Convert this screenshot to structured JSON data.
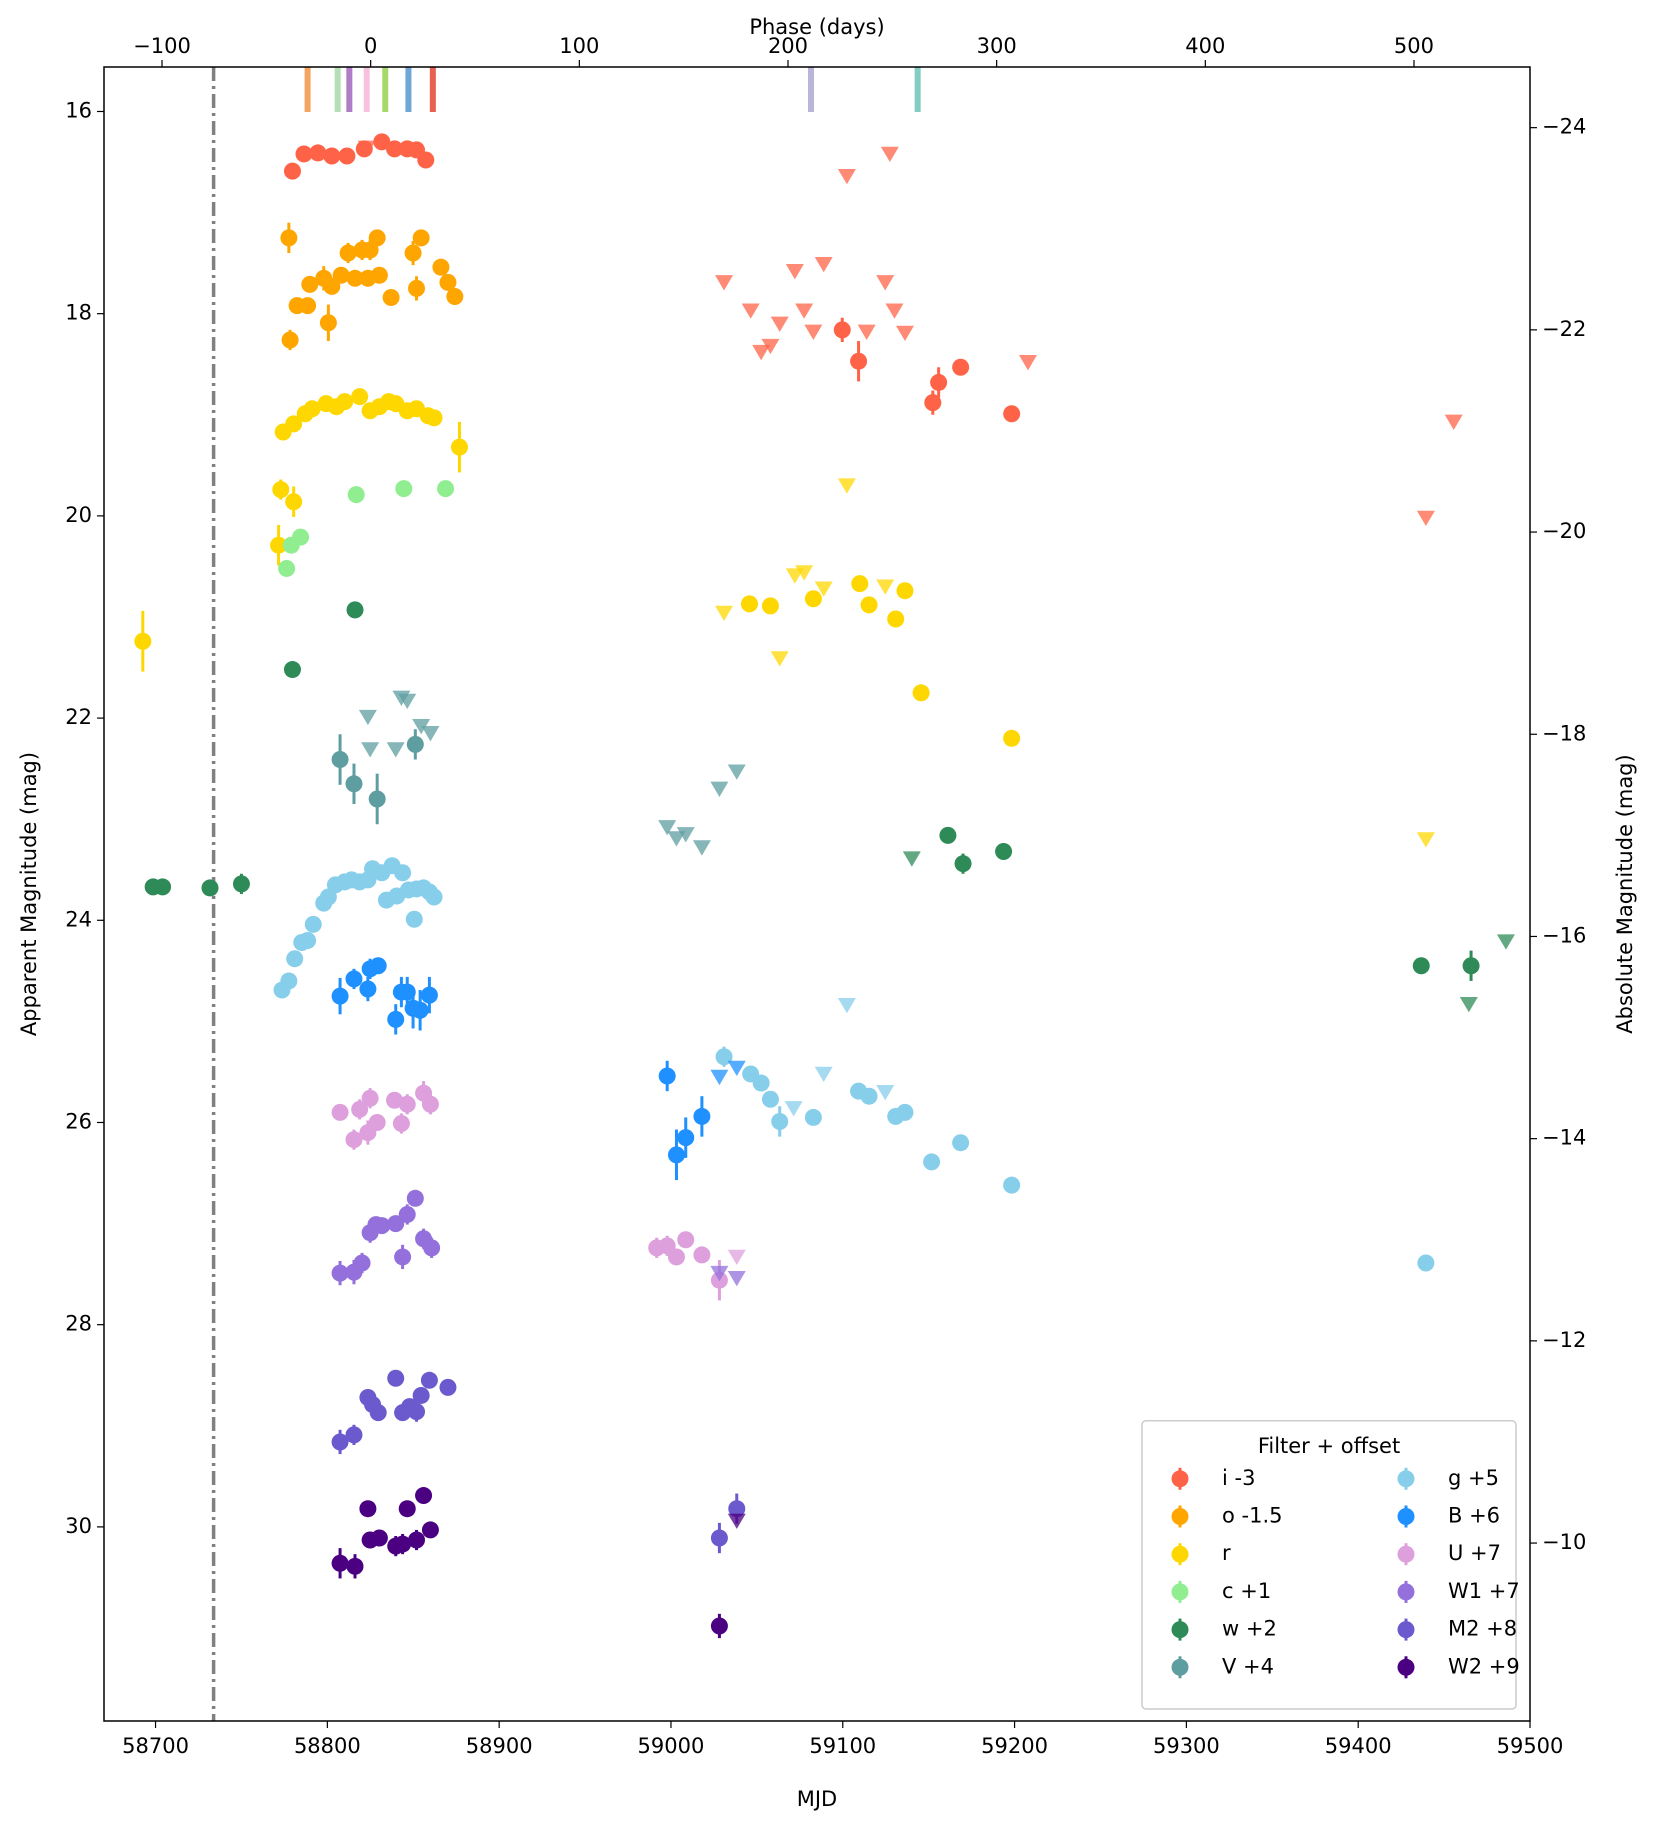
{
  "chart_data": {
    "type": "scatter",
    "xlabel": "MJD",
    "ylabel": "Apparent Magnitude (mag)",
    "x2label": "Phase (days)",
    "y2label": "Absolute Magnitude (mag)",
    "xlim": [
      58670,
      59500
    ],
    "xticks": [
      58700,
      58800,
      58900,
      59000,
      59100,
      59200,
      59300,
      59400,
      59500
    ],
    "ylim": [
      31.92,
      15.56
    ],
    "yticks": [
      16,
      18,
      20,
      22,
      24,
      26,
      28,
      30
    ],
    "x2lim": [
      -127.8,
      555.6
    ],
    "x2ticks": [
      {
        "value": -100,
        "label": "−100"
      },
      0,
      100,
      200,
      300,
      400,
      500
    ],
    "y2lim": [
      -8.24,
      -24.6
    ],
    "y2ticks": [
      {
        "value": -24,
        "label": "−24"
      },
      {
        "value": -22,
        "label": "−22"
      },
      {
        "value": -20,
        "label": "−20"
      },
      {
        "value": -18,
        "label": "−18"
      },
      {
        "value": -16,
        "label": "−16"
      },
      {
        "value": -14,
        "label": "−14"
      },
      {
        "value": -12,
        "label": "−12"
      },
      {
        "value": -10,
        "label": "−10"
      }
    ],
    "vline_x": 58733.8,
    "vline_color": "#808080",
    "epoch_markers": {
      "x": [
        58788.5,
        58806.0,
        58812.8,
        58822.9,
        58833.7,
        58847.2,
        58861.4,
        59081.5,
        59143.6
      ],
      "colors": [
        "#f4a460",
        "#b5e0b5",
        "#b07cc6",
        "#f7c0dc",
        "#a6d96a",
        "#6ea8d6",
        "#e8604f",
        "#b8b4dc",
        "#80cdc1"
      ]
    },
    "legend": {
      "title": "Filter + offset",
      "position": "lower right",
      "columns": 2
    },
    "series": [
      {
        "name": "i -3",
        "color": "#ff6347",
        "x": [
          58779.7,
          58786.4,
          58794.5,
          58802.6,
          58811.4,
          58821.5,
          58831.7,
          58839.1,
          58846.5,
          58851.9,
          58857.3,
          59099.7,
          59109.2,
          59152.4,
          59155.8,
          59168.6,
          59198.3
        ],
        "values": [
          16.59,
          16.42,
          16.41,
          16.44,
          16.44,
          16.37,
          16.3,
          16.37,
          16.37,
          16.38,
          16.48,
          18.16,
          18.47,
          18.88,
          18.68,
          18.53,
          18.99
        ],
        "errors": [
          0.05,
          0.05,
          0.04,
          0.04,
          0.04,
          0.04,
          0.05,
          0.04,
          0.04,
          0.04,
          0.05,
          0.12,
          0.2,
          0.12,
          0.15,
          0.08,
          0.08
        ],
        "upper_limits": {
          "x": [
            58822.9,
            59030.9,
            59046.4,
            59052.5,
            59057.9,
            59063.3,
            59072.1,
            59077.5,
            59082.9,
            59088.9,
            59102.4,
            59113.9,
            59124.7,
            59127.4,
            59130.1,
            59136.2,
            59207.8,
            59439.4,
            59455.6
          ],
          "values": [
            16.36,
            17.69,
            17.97,
            18.38,
            18.32,
            18.1,
            17.58,
            17.97,
            18.18,
            17.51,
            16.64,
            18.18,
            17.69,
            16.42,
            17.97,
            18.19,
            18.48,
            20.02,
            19.07
          ]
        }
      },
      {
        "name": "o -1.5",
        "color": "#ffa500",
        "x": [
          58778.3,
          58782.4,
          58788.5,
          58789.8,
          58777.6,
          58800.6,
          58797.9,
          58802.6,
          58808.0,
          58812.1,
          58816.1,
          58820.2,
          58823.6,
          58824.9,
          58829.0,
          58830.3,
          58837.1,
          58849.9,
          58851.9,
          58854.6,
          58866.1,
          58870.2,
          58874.2
        ],
        "values": [
          18.26,
          17.92,
          17.92,
          17.71,
          17.25,
          18.09,
          17.65,
          17.73,
          17.62,
          17.4,
          17.65,
          17.37,
          17.65,
          17.37,
          17.25,
          17.62,
          17.84,
          17.4,
          17.75,
          17.25,
          17.54,
          17.69,
          17.83
        ],
        "errors": [
          0.1,
          0.06,
          0.06,
          0.06,
          0.15,
          0.18,
          0.12,
          0.08,
          0.08,
          0.1,
          0.08,
          0.1,
          0.08,
          0.1,
          0.06,
          0.08,
          0.06,
          0.12,
          0.12,
          0.08,
          0.06,
          0.06,
          0.08
        ]
      },
      {
        "name": "r",
        "color": "#ffd700",
        "x": [
          58692.6,
          58771.6,
          58772.9,
          58780.4,
          58774.3,
          58780.4,
          58787.1,
          58791.2,
          58799.3,
          58805.3,
          58810.1,
          58818.8,
          58824.9,
          58830.3,
          58835.7,
          58839.8,
          58846.5,
          58851.9,
          58858.7,
          58862.1,
          58876.9,
          59045.7,
          59057.9,
          59082.9,
          59109.9,
          59115.3,
          59130.8,
          59136.2,
          59145.6,
          59198.3
        ],
        "values": [
          21.24,
          20.29,
          19.74,
          19.86,
          19.17,
          19.09,
          18.99,
          18.94,
          18.89,
          18.92,
          18.87,
          18.82,
          18.96,
          18.92,
          18.87,
          18.89,
          18.96,
          18.94,
          19.01,
          19.03,
          19.32,
          20.87,
          20.89,
          20.82,
          20.67,
          20.88,
          21.02,
          20.74,
          21.75,
          22.2
        ],
        "errors": [
          0.3,
          0.2,
          0.1,
          0.15,
          0.06,
          0.06,
          0.06,
          0.05,
          0.05,
          0.06,
          0.05,
          0.05,
          0.05,
          0.05,
          0.05,
          0.05,
          0.05,
          0.05,
          0.05,
          0.05,
          0.25,
          0.08,
          0.05,
          0.08,
          0.05,
          0.08,
          0.05,
          0.08,
          0.06,
          0.08
        ],
        "upper_limits": {
          "x": [
            59030.9,
            59063.3,
            59072.1,
            59077.5,
            59088.9,
            59102.4,
            59124.7,
            59439.4
          ],
          "values": [
            20.96,
            21.41,
            20.59,
            20.56,
            20.72,
            19.7,
            20.7,
            23.2
          ]
        }
      },
      {
        "name": "c +1",
        "color": "#90ee90",
        "x": [
          58776.3,
          58779.0,
          58784.4,
          58816.8,
          58844.5,
          58868.8
        ],
        "values": [
          20.52,
          20.29,
          20.21,
          19.79,
          19.73,
          19.73
        ],
        "errors": [
          0.05,
          0.05,
          0.05,
          0.04,
          0.04,
          0.04
        ]
      },
      {
        "name": "w +2",
        "color": "#2e8b57",
        "x": [
          58698.6,
          58704.1,
          58731.7,
          58750.0,
          58779.7,
          58816.1,
          59161.2,
          59170.0,
          59193.6,
          59436.7,
          59465.7
        ],
        "values": [
          23.67,
          23.67,
          23.68,
          23.64,
          21.52,
          20.93,
          23.16,
          23.44,
          23.32,
          24.45,
          24.45
        ],
        "errors": [
          0.04,
          0.04,
          0.06,
          0.1,
          0.04,
          0.04,
          0.05,
          0.1,
          0.06,
          0.06,
          0.15
        ],
        "upper_limits": {
          "x": [
            59140.2,
            59464.4,
            59486.0
          ],
          "values": [
            23.39,
            24.83,
            24.21
          ]
        }
      },
      {
        "name": "V +4",
        "color": "#5f9ea0",
        "x": [
          58807.4,
          58815.5,
          58829.0,
          58851.2
        ],
        "values": [
          22.41,
          22.65,
          22.8,
          22.26
        ],
        "errors": [
          0.25,
          0.2,
          0.25,
          0.15
        ],
        "upper_limits": {
          "x": [
            58823.6,
            58824.9,
            58839.8,
            58843.1,
            58846.5,
            58854.6,
            58860.0,
            58997.8,
            59003.2,
            59008.6,
            59018.0,
            59028.2,
            59038.3
          ],
          "values": [
            21.99,
            22.31,
            22.31,
            21.8,
            21.83,
            22.08,
            22.15,
            23.08,
            23.19,
            23.15,
            23.28,
            22.7,
            22.53
          ]
        }
      },
      {
        "name": "g +5",
        "color": "#87ceeb",
        "x": [
          58773.6,
          58777.6,
          58781.0,
          58785.1,
          58788.5,
          58791.8,
          58797.9,
          58800.6,
          58804.7,
          58810.1,
          58814.1,
          58818.8,
          58823.6,
          58826.3,
          58831.7,
          58834.4,
          58837.7,
          58840.4,
          58843.8,
          58847.2,
          58850.6,
          58851.9,
          58856.0,
          58859.4,
          58862.1,
          59030.9,
          59046.4,
          59052.5,
          59057.9,
          59063.3,
          59082.9,
          59109.2,
          59115.3,
          59130.8,
          59136.2,
          59151.7,
          59168.6,
          59198.3,
          59439.4
        ],
        "values": [
          24.69,
          24.6,
          24.38,
          24.22,
          24.2,
          24.04,
          23.83,
          23.77,
          23.65,
          23.62,
          23.6,
          23.62,
          23.6,
          23.49,
          23.53,
          23.8,
          23.46,
          23.76,
          23.53,
          23.7,
          23.99,
          23.69,
          23.68,
          23.72,
          23.77,
          25.35,
          25.52,
          25.61,
          25.77,
          25.99,
          25.95,
          25.69,
          25.74,
          25.94,
          25.9,
          26.39,
          26.2,
          26.62,
          27.39
        ],
        "errors": [
          0.04,
          0.04,
          0.04,
          0.04,
          0.04,
          0.04,
          0.04,
          0.04,
          0.04,
          0.04,
          0.04,
          0.04,
          0.04,
          0.04,
          0.04,
          0.04,
          0.04,
          0.04,
          0.04,
          0.04,
          0.08,
          0.04,
          0.04,
          0.04,
          0.04,
          0.1,
          0.05,
          0.05,
          0.05,
          0.15,
          0.08,
          0.04,
          0.05,
          0.06,
          0.05,
          0.05,
          0.05,
          0.05,
          0.05
        ],
        "upper_limits": {
          "x": [
            59071.4,
            59088.9,
            59102.4,
            59124.7
          ],
          "values": [
            25.86,
            25.52,
            24.84,
            25.7
          ]
        }
      },
      {
        "name": "B +6",
        "color": "#1e90ff",
        "x": [
          58807.4,
          58815.5,
          58823.6,
          58824.9,
          58829.6,
          58839.8,
          58843.1,
          58846.5,
          58849.9,
          58854.0,
          58859.4,
          58997.8,
          59003.2,
          59008.6,
          59018.0
        ],
        "values": [
          24.75,
          24.58,
          24.68,
          24.48,
          24.45,
          24.98,
          24.71,
          24.71,
          24.87,
          24.89,
          24.74,
          25.54,
          26.32,
          26.15,
          25.94
        ],
        "errors": [
          0.18,
          0.1,
          0.12,
          0.1,
          0.08,
          0.15,
          0.15,
          0.15,
          0.2,
          0.2,
          0.18,
          0.15,
          0.25,
          0.2,
          0.2
        ],
        "upper_limits": {
          "x": [
            59028.2,
            59038.3
          ],
          "values": [
            25.55,
            25.46
          ]
        }
      },
      {
        "name": "U +7",
        "color": "#dda0dd",
        "x": [
          58807.4,
          58815.5,
          58818.8,
          58823.6,
          58824.9,
          58829.0,
          58839.1,
          58843.1,
          58846.5,
          58856.0,
          58860.0,
          58991.7,
          58997.8,
          59003.2,
          59008.6,
          59018.0,
          59028.2
        ],
        "values": [
          25.9,
          26.17,
          25.87,
          26.1,
          25.76,
          26.0,
          25.78,
          26.01,
          25.82,
          25.71,
          25.82,
          27.24,
          27.22,
          27.33,
          27.16,
          27.31,
          27.56
        ],
        "errors": [
          0.08,
          0.1,
          0.1,
          0.12,
          0.1,
          0.08,
          0.08,
          0.1,
          0.1,
          0.12,
          0.1,
          0.1,
          0.1,
          0.08,
          0.08,
          0.08,
          0.2
        ],
        "upper_limits": {
          "x": [
            59038.3
          ],
          "values": [
            27.33
          ]
        }
      },
      {
        "name": "W1 +7",
        "color": "#9370db",
        "x": [
          58807.4,
          58815.5,
          58820.2,
          58824.9,
          58828.3,
          58831.7,
          58839.8,
          58843.8,
          58846.5,
          58851.2,
          58856.0,
          58860.7
        ],
        "values": [
          27.49,
          27.48,
          27.39,
          27.09,
          27.01,
          27.02,
          27.0,
          27.33,
          26.91,
          26.75,
          27.15,
          27.24
        ],
        "errors": [
          0.12,
          0.12,
          0.1,
          0.1,
          0.08,
          0.08,
          0.08,
          0.12,
          0.1,
          0.08,
          0.1,
          0.1
        ],
        "upper_limits": {
          "x": [
            59028.2,
            59038.3
          ],
          "values": [
            27.49,
            27.54
          ]
        }
      },
      {
        "name": "M2 +8",
        "color": "#6a5acd",
        "x": [
          58807.4,
          58815.5,
          58823.6,
          58826.3,
          58829.6,
          58839.8,
          58843.8,
          58847.9,
          58851.9,
          58854.6,
          58859.4,
          58870.2,
          59028.2,
          59038.3
        ],
        "values": [
          29.16,
          29.09,
          28.72,
          28.79,
          28.87,
          28.53,
          28.87,
          28.81,
          28.86,
          28.7,
          28.55,
          28.62,
          30.11,
          29.82
        ],
        "errors": [
          0.12,
          0.1,
          0.08,
          0.08,
          0.08,
          0.06,
          0.08,
          0.08,
          0.1,
          0.08,
          0.06,
          0.06,
          0.15,
          0.15
        ]
      },
      {
        "name": "W2 +9",
        "color": "#4b0082",
        "x": [
          58807.4,
          58816.1,
          58823.6,
          58824.9,
          58830.3,
          58839.8,
          58843.8,
          58846.5,
          58851.9,
          58856.0,
          58860.0,
          59028.2
        ],
        "values": [
          30.36,
          30.39,
          29.82,
          30.13,
          30.11,
          30.19,
          30.17,
          29.82,
          30.13,
          29.69,
          30.03,
          30.98
        ],
        "errors": [
          0.15,
          0.12,
          0.08,
          0.08,
          0.08,
          0.1,
          0.1,
          0.08,
          0.1,
          0.08,
          0.08,
          0.12
        ],
        "upper_limits": {
          "x": [
            59038.3
          ],
          "values": [
            29.94
          ]
        }
      }
    ]
  }
}
